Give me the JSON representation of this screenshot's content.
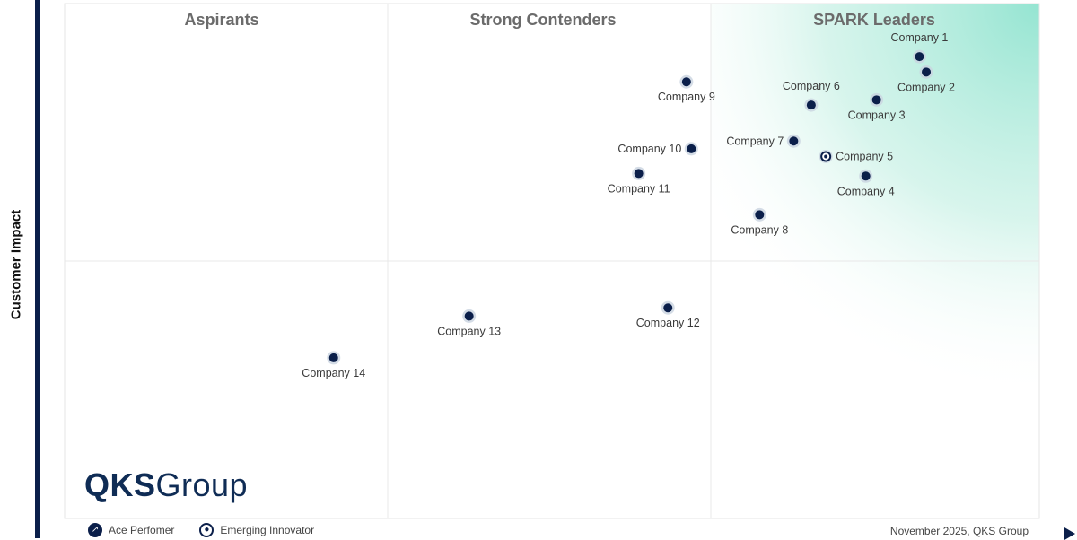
{
  "chart_data": {
    "type": "scatter",
    "ylabel": "Customer Impact",
    "xlabel": "",
    "quadrants": [
      "Aspirants",
      "Strong Contenders",
      "SPARK Leaders"
    ],
    "points": [
      {
        "name": "Company 1",
        "x": 8.77,
        "y": 8.97,
        "kind": "ace",
        "label_pos": "above"
      },
      {
        "name": "Company 2",
        "x": 8.84,
        "y": 8.67,
        "kind": "ace",
        "label_pos": "below"
      },
      {
        "name": "Company 3",
        "x": 8.33,
        "y": 8.13,
        "kind": "ace",
        "label_pos": "below"
      },
      {
        "name": "Company 4",
        "x": 8.22,
        "y": 6.65,
        "kind": "ace",
        "label_pos": "below"
      },
      {
        "name": "Company 5",
        "x": 7.81,
        "y": 7.03,
        "kind": "emerging",
        "label_pos": "right"
      },
      {
        "name": "Company 6",
        "x": 7.66,
        "y": 8.03,
        "kind": "ace",
        "label_pos": "above"
      },
      {
        "name": "Company 7",
        "x": 7.48,
        "y": 7.33,
        "kind": "ace",
        "label_pos": "left"
      },
      {
        "name": "Company 8",
        "x": 7.13,
        "y": 5.9,
        "kind": "ace",
        "label_pos": "below"
      },
      {
        "name": "Company 9",
        "x": 6.38,
        "y": 8.48,
        "kind": "ace",
        "label_pos": "below"
      },
      {
        "name": "Company 10",
        "x": 6.43,
        "y": 7.18,
        "kind": "ace",
        "label_pos": "left"
      },
      {
        "name": "Company 11",
        "x": 5.89,
        "y": 6.7,
        "kind": "ace",
        "label_pos": "below"
      },
      {
        "name": "Company 12",
        "x": 6.19,
        "y": 4.09,
        "kind": "ace",
        "label_pos": "below"
      },
      {
        "name": "Company 13",
        "x": 4.15,
        "y": 3.93,
        "kind": "ace",
        "label_pos": "below"
      },
      {
        "name": "Company 14",
        "x": 2.76,
        "y": 3.12,
        "kind": "ace",
        "label_pos": "below"
      }
    ],
    "xlim": [
      0,
      10
    ],
    "ylim": [
      0,
      10
    ],
    "x_splits": [
      3.3,
      6.6
    ],
    "y_split": 4.3,
    "grid": false
  },
  "legend": {
    "items": [
      {
        "label": "Ace Perfomer",
        "icon": "trend-icon"
      },
      {
        "label": "Emerging Innovator",
        "icon": "emerging-icon"
      }
    ]
  },
  "logo": {
    "bold": "QKS",
    "rest": "Group"
  },
  "footer_note": "November 2025, QKS Group",
  "colors": {
    "dot": "#0b1f4a",
    "leader_gradient": "#8fe3cf",
    "quadrant_title": "#6b6b6b",
    "axis": "#0b1f4a"
  }
}
